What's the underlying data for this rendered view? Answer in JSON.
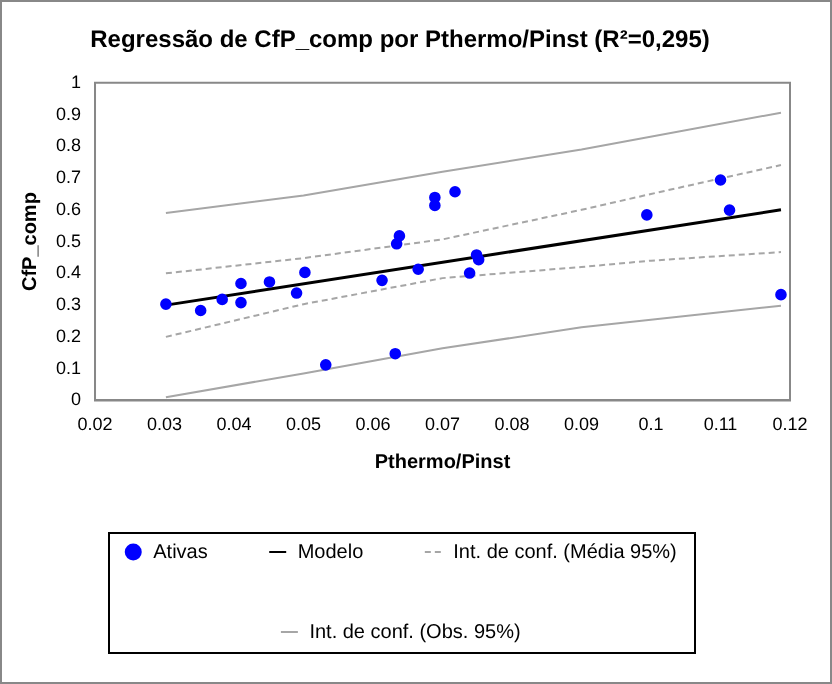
{
  "chart_data": {
    "type": "scatter",
    "title": "Regressão de CfP_comp por Pthermo/Pinst (R²=0,295)",
    "xlabel": "Pthermo/Pinst",
    "ylabel": "CfP_comp",
    "xlim": [
      0.02,
      0.12
    ],
    "xticks": [
      0.02,
      0.03,
      0.04,
      0.05,
      0.06,
      0.07,
      0.08,
      0.09,
      0.1,
      0.11,
      0.12
    ],
    "ylim": [
      0,
      1
    ],
    "yticks": [
      0,
      0.1,
      0.2,
      0.3,
      0.4,
      0.5,
      0.6,
      0.7,
      0.8,
      0.9,
      1
    ],
    "grid": false,
    "legend": "bottom",
    "series": [
      {
        "name": "Ativas",
        "marker": "circle",
        "color": "#0000ff",
        "x": [
          0.0302,
          0.0352,
          0.0383,
          0.041,
          0.041,
          0.0451,
          0.049,
          0.0502,
          0.0532,
          0.0613,
          0.0632,
          0.0634,
          0.0638,
          0.0665,
          0.0689,
          0.0689,
          0.0718,
          0.0739,
          0.0749,
          0.0752,
          0.0994,
          0.11,
          0.1113,
          0.1187
        ],
        "values": [
          0.303,
          0.283,
          0.318,
          0.368,
          0.308,
          0.373,
          0.338,
          0.403,
          0.112,
          0.378,
          0.147,
          0.493,
          0.518,
          0.413,
          0.639,
          0.614,
          0.657,
          0.401,
          0.458,
          0.443,
          0.584,
          0.694,
          0.599,
          0.333
        ]
      },
      {
        "name": "Modelo",
        "type": "line",
        "marker": "none",
        "line_style": "solid",
        "color": "#000000",
        "x": [
          0.0302,
          0.1187
        ],
        "values": [
          0.3,
          0.6
        ]
      },
      {
        "name": "Int. de conf. (Média 95%)",
        "type": "line",
        "marker": "none",
        "line_style": "dashed",
        "color": "#a6a6a6",
        "x": [
          0.0302,
          0.05,
          0.07,
          0.09,
          0.1,
          0.1187
        ],
        "values": [
          0.4,
          0.448,
          0.507,
          0.6,
          0.65,
          0.741
        ]
      },
      {
        "type": "line",
        "marker": "none",
        "line_style": "dashed",
        "color": "#a6a6a6",
        "x": [
          0.0302,
          0.05,
          0.07,
          0.09,
          0.1,
          0.1187
        ],
        "values": [
          0.2,
          0.303,
          0.385,
          0.42,
          0.44,
          0.467
        ]
      },
      {
        "name": "Int. de conf. (Obs. 95%)",
        "type": "line",
        "marker": "none",
        "line_style": "solid",
        "color": "#a6a6a6",
        "x": [
          0.0302,
          0.05,
          0.07,
          0.09,
          0.1187
        ],
        "values": [
          0.59,
          0.645,
          0.72,
          0.79,
          0.906
        ]
      },
      {
        "type": "line",
        "marker": "none",
        "line_style": "solid",
        "color": "#a6a6a6",
        "x": [
          0.0302,
          0.05,
          0.07,
          0.09,
          0.1187
        ],
        "values": [
          0.01,
          0.085,
          0.164,
          0.23,
          0.298
        ]
      }
    ]
  }
}
